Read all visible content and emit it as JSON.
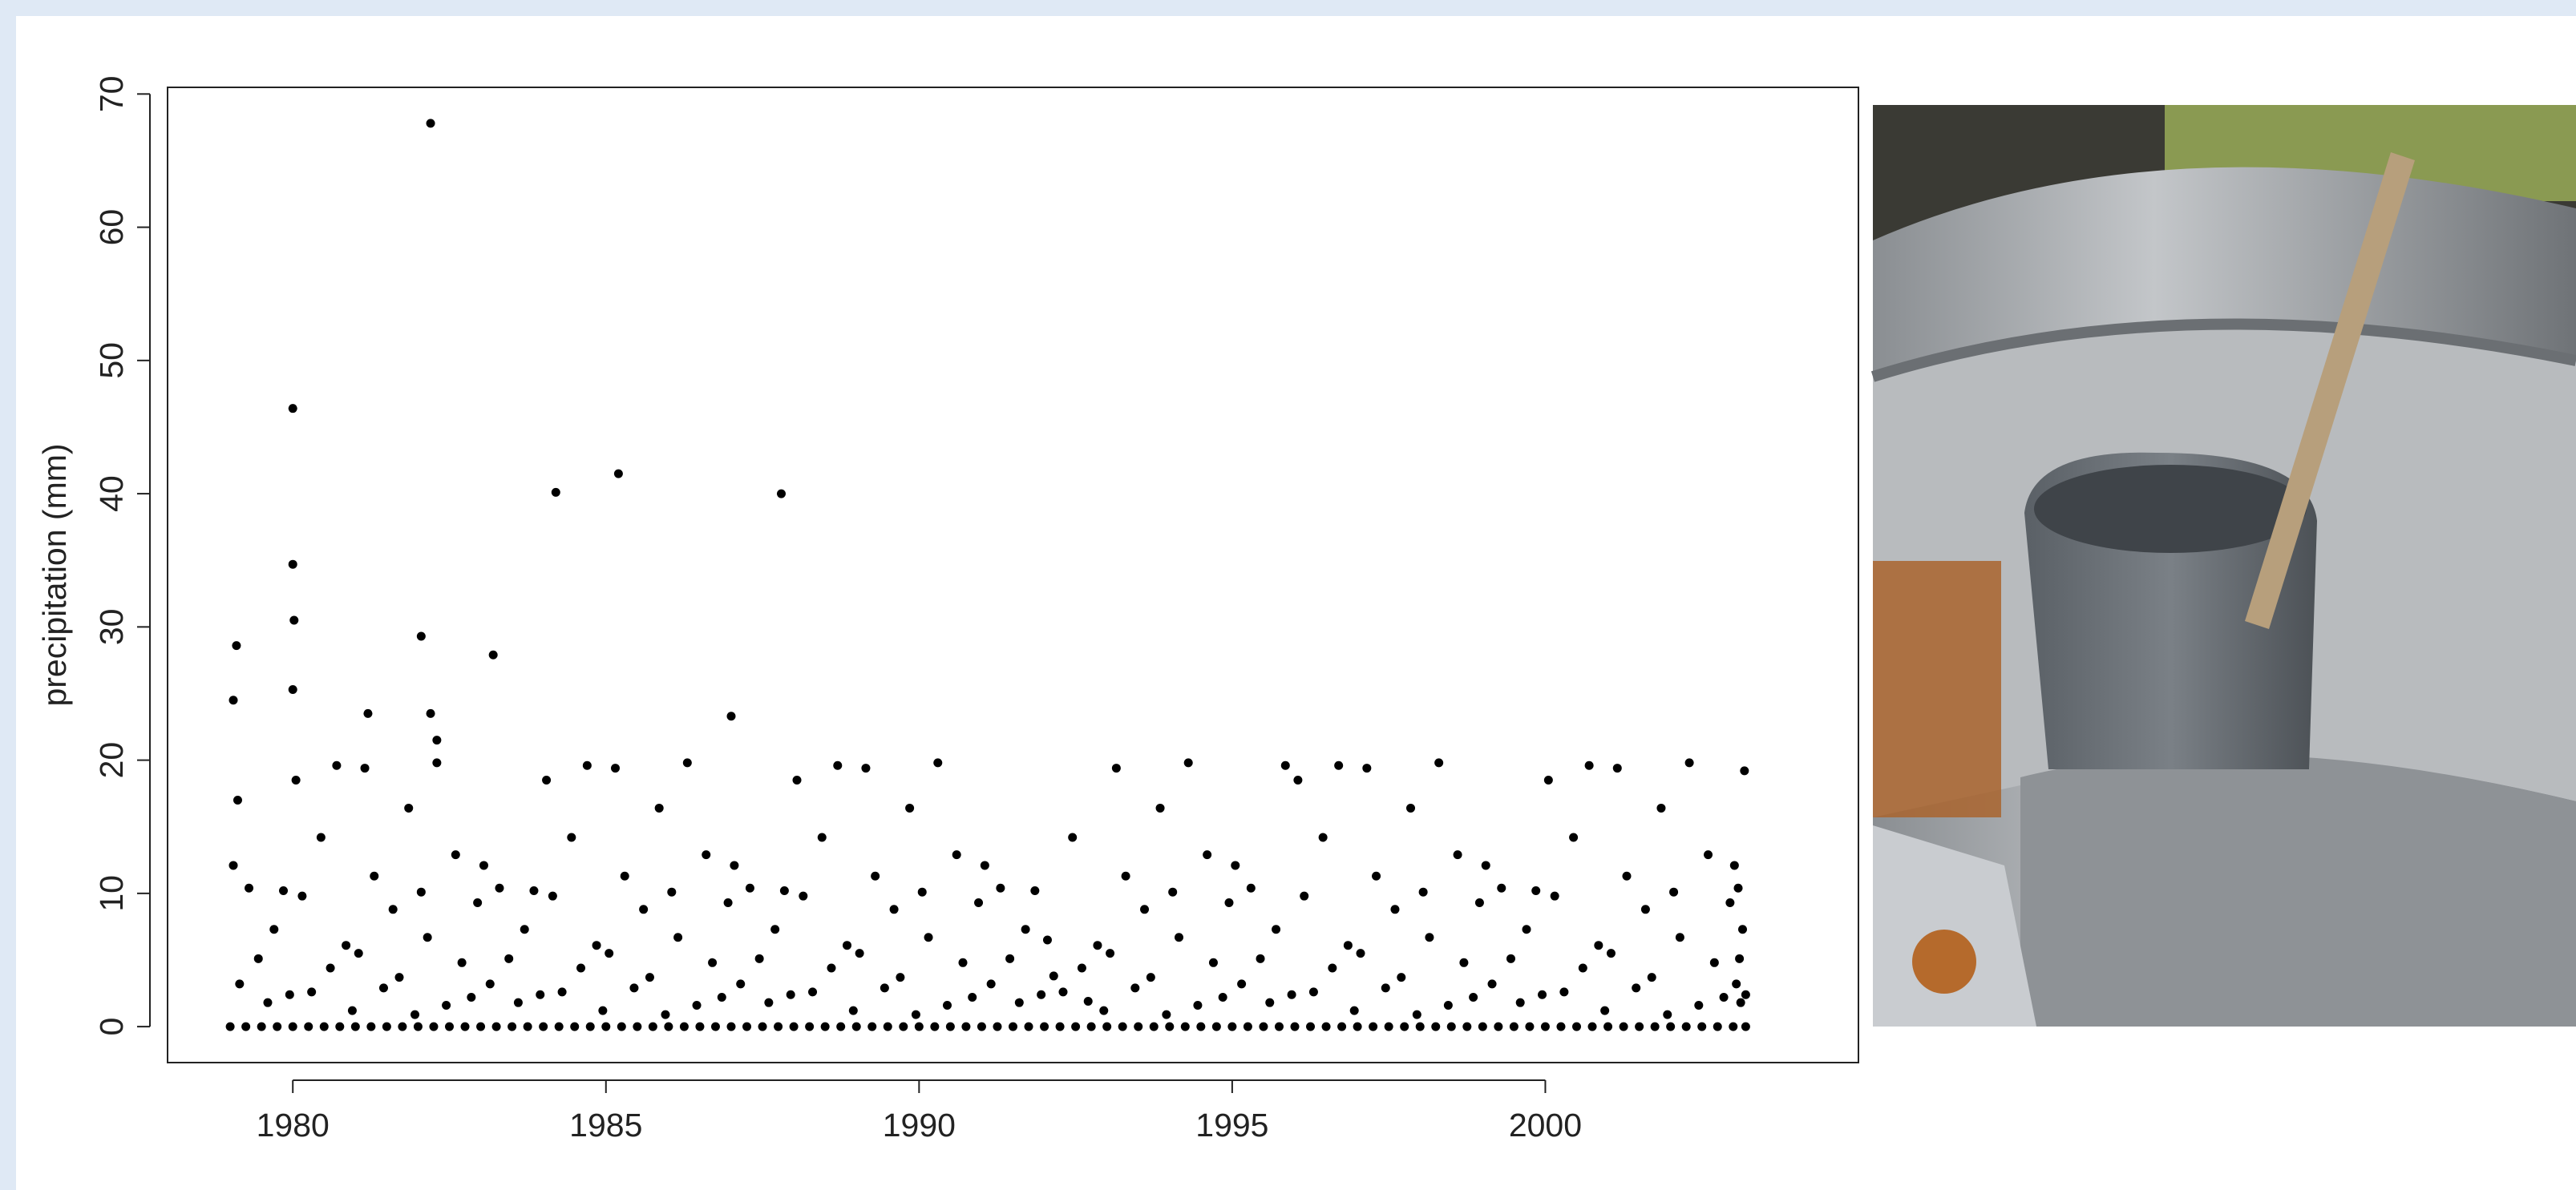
{
  "chart_data": {
    "type": "scatter",
    "y_label": "precipitation (mm)",
    "color": "#000000",
    "xlim": [
      1978,
      2005
    ],
    "ylim": [
      -2.7,
      70.5
    ],
    "xticks": [
      1980,
      1985,
      1990,
      1995,
      2000
    ],
    "yticks": [
      0,
      10,
      20,
      30,
      40,
      50,
      60,
      70
    ],
    "x": [
      1979.05,
      1979.1,
      1979.12,
      1980.0,
      1980.0,
      1980.02,
      1980.0,
      1981.2,
      1982.2,
      1982.05,
      1982.2,
      1982.3,
      1983.2,
      1984.2,
      1985.2,
      1987.0,
      1987.8,
      1979.05,
      1979.15,
      1979.3,
      1979.45,
      1979.6,
      1979.7,
      1979.85,
      1979.95,
      1980.05,
      1980.15,
      1980.3,
      1980.45,
      1980.6,
      1980.7,
      1980.85,
      1980.95,
      1981.05,
      1981.15,
      1981.3,
      1981.45,
      1981.6,
      1981.7,
      1981.85,
      1981.95,
      1982.05,
      1982.15,
      1982.3,
      1982.45,
      1982.6,
      1982.7,
      1982.85,
      1982.95,
      1983.05,
      1983.15,
      1983.3,
      1983.45,
      1983.6,
      1983.7,
      1983.85,
      1983.95,
      1984.05,
      1984.15,
      1984.3,
      1984.45,
      1984.6,
      1984.7,
      1984.85,
      1984.95,
      1985.05,
      1985.15,
      1985.3,
      1985.45,
      1985.6,
      1985.7,
      1985.85,
      1985.95,
      1986.05,
      1986.15,
      1986.3,
      1986.45,
      1986.6,
      1986.7,
      1986.85,
      1986.95,
      1987.05,
      1987.15,
      1987.3,
      1987.45,
      1987.6,
      1987.7,
      1987.85,
      1987.95,
      1988.05,
      1988.15,
      1988.3,
      1988.45,
      1988.6,
      1988.7,
      1988.85,
      1988.95,
      1989.05,
      1989.15,
      1989.3,
      1989.45,
      1989.6,
      1989.7,
      1989.85,
      1989.95,
      1990.05,
      1990.15,
      1990.3,
      1990.45,
      1990.6,
      1990.7,
      1990.85,
      1990.95,
      1991.05,
      1991.15,
      1991.3,
      1991.45,
      1991.6,
      1991.7,
      1991.85,
      1991.95,
      1992.05,
      1992.15,
      1992.3,
      1992.45,
      1992.6,
      1992.7,
      1992.85,
      1992.95,
      1993.05,
      1993.15,
      1993.3,
      1993.45,
      1993.6,
      1993.7,
      1993.85,
      1993.95,
      1994.05,
      1994.15,
      1994.3,
      1994.45,
      1994.6,
      1994.7,
      1994.85,
      1994.95,
      1995.05,
      1995.15,
      1995.3,
      1995.45,
      1995.6,
      1995.7,
      1995.85,
      1995.95,
      1996.05,
      1996.15,
      1996.3,
      1996.45,
      1996.6,
      1996.7,
      1996.85,
      1996.95,
      1997.05,
      1997.15,
      1997.3,
      1997.45,
      1997.6,
      1997.7,
      1997.85,
      1997.95,
      1998.05,
      1998.15,
      1998.3,
      1998.45,
      1998.6,
      1998.7,
      1998.85,
      1998.95,
      1999.05,
      1999.15,
      1999.3,
      1999.45,
      1999.6,
      1999.7,
      1999.85,
      1999.95,
      2000.05,
      2000.15,
      2000.3,
      2000.45,
      2000.6,
      2000.7,
      2000.85,
      2000.95,
      2001.05,
      2001.15,
      2001.3,
      2001.45,
      2001.6,
      2001.7,
      2001.85,
      2001.95,
      2002.05,
      2002.15,
      2002.3,
      2002.45,
      2002.6,
      2002.7,
      2002.85,
      2002.95,
      2003.02,
      2003.05,
      2003.08,
      2003.1,
      2003.12,
      2003.15,
      2003.18,
      2003.2,
      1979,
      1979.25,
      1979.5,
      1979.75,
      1980,
      1980.25,
      1980.5,
      1980.75,
      1981,
      1981.25,
      1981.5,
      1981.75,
      1982,
      1982.25,
      1982.5,
      1982.75,
      1983,
      1983.25,
      1983.5,
      1983.75,
      1984,
      1984.25,
      1984.5,
      1984.75,
      1985,
      1985.25,
      1985.5,
      1985.75,
      1986,
      1986.25,
      1986.5,
      1986.75,
      1987,
      1987.25,
      1987.5,
      1987.75,
      1988,
      1988.25,
      1988.5,
      1988.75,
      1989,
      1989.25,
      1989.5,
      1989.75,
      1990,
      1990.25,
      1990.5,
      1990.75,
      1991,
      1991.25,
      1991.5,
      1991.75,
      1992,
      1992.25,
      1992.5,
      1992.75,
      1993,
      1993.25,
      1993.5,
      1993.75,
      1994,
      1994.25,
      1994.5,
      1994.75,
      1995,
      1995.25,
      1995.5,
      1995.75,
      1996,
      1996.25,
      1996.5,
      1996.75,
      1997,
      1997.25,
      1997.5,
      1997.75,
      1998,
      1998.25,
      1998.5,
      1998.75,
      1999,
      1999.25,
      1999.5,
      1999.75,
      2000,
      2000.25,
      2000.5,
      2000.75,
      2001,
      2001.25,
      2001.5,
      2001.75,
      2002,
      2002.25,
      2002.5,
      2002.75,
      2003,
      2003.2
    ],
    "values": [
      24.5,
      28.6,
      17.0,
      46.4,
      34.7,
      30.5,
      25.3,
      23.5,
      67.8,
      29.3,
      23.5,
      21.5,
      27.9,
      40.1,
      41.5,
      23.3,
      40.0,
      12.1,
      3.2,
      10.4,
      5.1,
      1.8,
      7.3,
      10.2,
      2.4,
      18.5,
      9.8,
      2.6,
      14.2,
      4.4,
      19.6,
      6.1,
      1.2,
      5.5,
      19.4,
      11.3,
      2.9,
      8.8,
      3.7,
      16.4,
      0.9,
      10.1,
      6.7,
      19.8,
      1.6,
      12.9,
      4.8,
      2.2,
      9.3,
      12.1,
      3.2,
      10.4,
      5.1,
      1.8,
      7.3,
      10.2,
      2.4,
      18.5,
      9.8,
      2.6,
      14.2,
      4.4,
      19.6,
      6.1,
      1.2,
      5.5,
      19.4,
      11.3,
      2.9,
      8.8,
      3.7,
      16.4,
      0.9,
      10.1,
      6.7,
      19.8,
      1.6,
      12.9,
      4.8,
      2.2,
      9.3,
      12.1,
      3.2,
      10.4,
      5.1,
      1.8,
      7.3,
      10.2,
      2.4,
      18.5,
      9.8,
      2.6,
      14.2,
      4.4,
      19.6,
      6.1,
      1.2,
      5.5,
      19.4,
      11.3,
      2.9,
      8.8,
      3.7,
      16.4,
      0.9,
      10.1,
      6.7,
      19.8,
      1.6,
      12.9,
      4.8,
      2.2,
      9.3,
      12.1,
      3.2,
      10.4,
      5.1,
      1.8,
      7.3,
      10.2,
      2.4,
      6.5,
      3.8,
      2.6,
      14.2,
      4.4,
      1.9,
      6.1,
      1.2,
      5.5,
      19.4,
      11.3,
      2.9,
      8.8,
      3.7,
      16.4,
      0.9,
      10.1,
      6.7,
      19.8,
      1.6,
      12.9,
      4.8,
      2.2,
      9.3,
      12.1,
      3.2,
      10.4,
      5.1,
      1.8,
      7.3,
      19.6,
      2.4,
      18.5,
      9.8,
      2.6,
      14.2,
      4.4,
      19.6,
      6.1,
      1.2,
      5.5,
      19.4,
      11.3,
      2.9,
      8.8,
      3.7,
      16.4,
      0.9,
      10.1,
      6.7,
      19.8,
      1.6,
      12.9,
      4.8,
      2.2,
      9.3,
      12.1,
      3.2,
      10.4,
      5.1,
      1.8,
      7.3,
      10.2,
      2.4,
      18.5,
      9.8,
      2.6,
      14.2,
      4.4,
      19.6,
      6.1,
      1.2,
      5.5,
      19.4,
      11.3,
      2.9,
      8.8,
      3.7,
      16.4,
      0.9,
      10.1,
      6.7,
      19.8,
      1.6,
      12.9,
      4.8,
      2.2,
      9.3,
      12.1,
      3.2,
      10.4,
      5.1,
      1.8,
      7.3,
      19.2,
      2.4,
      0,
      0,
      0,
      0,
      0,
      0,
      0,
      0,
      0,
      0,
      0,
      0,
      0,
      0,
      0,
      0,
      0,
      0,
      0,
      0,
      0,
      0,
      0,
      0,
      0,
      0,
      0,
      0,
      0,
      0,
      0,
      0,
      0,
      0,
      0,
      0,
      0,
      0,
      0,
      0,
      0,
      0,
      0,
      0,
      0,
      0,
      0,
      0,
      0,
      0,
      0,
      0,
      0,
      0,
      0,
      0,
      0,
      0,
      0,
      0,
      0,
      0,
      0,
      0,
      0,
      0,
      0,
      0,
      0,
      0,
      0,
      0,
      0,
      0,
      0,
      0,
      0,
      0,
      0,
      0,
      0,
      0,
      0,
      0,
      0,
      0,
      0,
      0,
      0,
      0,
      0,
      0,
      0,
      0,
      0,
      0,
      0,
      0
    ]
  }
}
